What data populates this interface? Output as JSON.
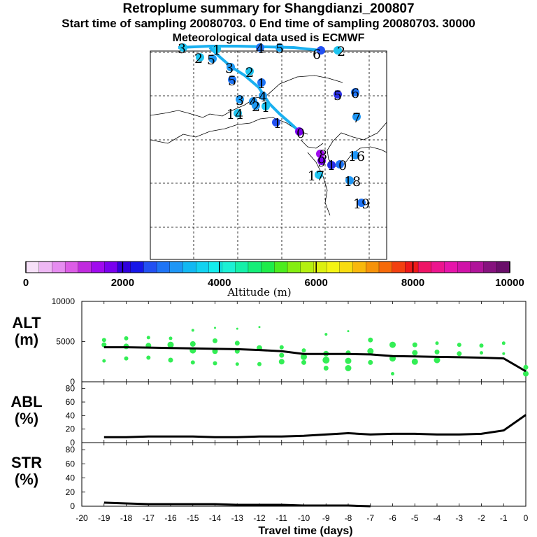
{
  "header": {
    "title": "Retroplume summary for Shangdianzi_200807",
    "sampling": "Start time of sampling 20080703.     0     End time of sampling 20080703. 30000",
    "met": "Meteorological data used is ECMWF"
  },
  "colors": {
    "trajectory": "#1ab0f0",
    "altitude_points": "#33ee55",
    "line": "#000000"
  },
  "map": {
    "labels": [
      {
        "text": "3"
      },
      {
        "text": "2"
      },
      {
        "text": "5"
      },
      {
        "text": "3"
      },
      {
        "text": "4"
      },
      {
        "text": "5"
      },
      {
        "text": "6"
      },
      {
        "text": "2"
      },
      {
        "text": "5"
      },
      {
        "text": "1"
      },
      {
        "text": "2"
      },
      {
        "text": "1"
      },
      {
        "text": "5"
      },
      {
        "text": "6"
      },
      {
        "text": "3"
      },
      {
        "text": "4"
      },
      {
        "text": "4"
      },
      {
        "text": "1"
      },
      {
        "text": "14"
      },
      {
        "text": "2"
      },
      {
        "text": "7"
      },
      {
        "text": "1"
      },
      {
        "text": "0"
      },
      {
        "text": "8"
      },
      {
        "text": "16"
      },
      {
        "text": "1"
      },
      {
        "text": "9"
      },
      {
        "text": "0"
      },
      {
        "text": "17"
      },
      {
        "text": "18"
      },
      {
        "text": "19"
      }
    ]
  },
  "colorbar": {
    "min": 0,
    "max": 10000,
    "ticks": [
      "0",
      "2000",
      "4000",
      "6000",
      "8000",
      "10000"
    ],
    "label": "Altitude (m)",
    "colors": [
      "#f6e0f8",
      "#eeb8f4",
      "#e68cf0",
      "#dc5ce6",
      "#c02ade",
      "#a00aee",
      "#7a00ee",
      "#3000dc",
      "#1616e8",
      "#2250f2",
      "#1e74f6",
      "#1e96f6",
      "#12b8f2",
      "#12d2f0",
      "#14ecec",
      "#1cf0d4",
      "#14f0a8",
      "#14ee78",
      "#1eec4a",
      "#4cec1e",
      "#84ee10",
      "#b4f010",
      "#dcf010",
      "#f4f414",
      "#f8dc10",
      "#f8b80c",
      "#f6920a",
      "#f66a0a",
      "#f24010",
      "#ee1818",
      "#ee1466",
      "#ec148e",
      "#e614aa",
      "#d012a8",
      "#b0149a",
      "#86127e",
      "#6a0e6a"
    ]
  },
  "chart_data": [
    {
      "type": "scatter+line",
      "name": "ALT",
      "ylabel": "ALT\n(m)",
      "ylabel_lines": [
        "ALT",
        "(m)"
      ],
      "ylim": [
        0,
        10000
      ],
      "yticks": [
        "10000",
        "5000",
        "0"
      ],
      "ytick_values": [
        10000,
        5000,
        0
      ],
      "xlim": [
        -20,
        0
      ],
      "line": {
        "x": [
          -19,
          -18,
          -17,
          -16,
          -15,
          -14,
          -13,
          -12,
          -11,
          -10,
          -9,
          -8,
          -7,
          -6,
          -5,
          -4,
          -3,
          -2,
          -1,
          0
        ],
        "y": [
          4300,
          4300,
          4250,
          4200,
          4150,
          4100,
          4050,
          3950,
          3800,
          3450,
          3450,
          3450,
          3400,
          3200,
          3150,
          3100,
          3050,
          3000,
          2900,
          1300
        ]
      },
      "points": {
        "x": [
          -19,
          -19,
          -19,
          -18,
          -18,
          -18,
          -17,
          -17,
          -17,
          -16,
          -16,
          -16,
          -15,
          -15,
          -15,
          -15,
          -14,
          -14,
          -14,
          -14,
          -13,
          -13,
          -13,
          -13,
          -12,
          -12,
          -12,
          -11,
          -11,
          -11,
          -10,
          -10,
          -10,
          -9,
          -9,
          -9,
          -9,
          -8,
          -8,
          -8,
          -8,
          -7,
          -7,
          -7,
          -6,
          -6,
          -6,
          -5,
          -5,
          -5,
          -4,
          -4,
          -4,
          -3,
          -3,
          -2,
          -2,
          -1,
          -1,
          0,
          0
        ],
        "y": [
          2600,
          4600,
          5200,
          2900,
          4400,
          5400,
          3000,
          4500,
          5500,
          2700,
          4600,
          5400,
          2400,
          3900,
          4700,
          6400,
          2300,
          3800,
          5100,
          6700,
          2200,
          3800,
          4800,
          6600,
          2200,
          4200,
          6800,
          2500,
          3300,
          4300,
          2400,
          3100,
          3900,
          1700,
          2700,
          3500,
          5900,
          1700,
          2600,
          3600,
          6300,
          2400,
          3800,
          5200,
          1000,
          2900,
          4600,
          2500,
          3600,
          4600,
          2700,
          3700,
          4800,
          3500,
          4600,
          3600,
          4500,
          3500,
          4800,
          1000,
          1800
        ],
        "size": [
          4,
          6,
          5,
          5,
          7,
          5,
          5,
          7,
          4,
          6,
          8,
          4,
          5,
          8,
          7,
          3,
          5,
          7,
          6,
          2,
          4,
          6,
          6,
          2,
          5,
          7,
          2,
          7,
          6,
          5,
          6,
          8,
          5,
          6,
          9,
          7,
          3,
          8,
          8,
          6,
          2,
          6,
          8,
          6,
          4,
          8,
          8,
          8,
          7,
          6,
          8,
          6,
          4,
          6,
          5,
          4,
          5,
          3,
          4,
          7,
          6
        ]
      }
    },
    {
      "type": "line",
      "name": "ABL",
      "ylabel_lines": [
        "ABL",
        "(%)"
      ],
      "ylim": [
        0,
        90
      ],
      "yticks": [
        "80",
        "60",
        "40",
        "20",
        "0"
      ],
      "ytick_values": [
        80,
        60,
        40,
        20,
        0
      ],
      "xlim": [
        -20,
        0
      ],
      "x": [
        -19,
        -18,
        -17,
        -16,
        -15,
        -14,
        -13,
        -12,
        -11,
        -10,
        -9,
        -8,
        -7,
        -6,
        -5,
        -4,
        -3,
        -2,
        -1,
        0
      ],
      "y": [
        8,
        8,
        9,
        9,
        9,
        8,
        8,
        9,
        9,
        10,
        12,
        14,
        12,
        13,
        13,
        12,
        12,
        13,
        18,
        41
      ]
    },
    {
      "type": "line",
      "name": "STR",
      "ylabel_lines": [
        "STR",
        "(%)"
      ],
      "ylim": [
        0,
        90
      ],
      "yticks": [
        "80",
        "60",
        "40",
        "20",
        "0"
      ],
      "ytick_values": [
        80,
        60,
        40,
        20,
        0
      ],
      "xlim": [
        -20,
        0
      ],
      "x": [
        -19,
        -18,
        -17,
        -16,
        -15,
        -14,
        -13,
        -12,
        -11,
        -10,
        -9,
        -8,
        -7
      ],
      "y": [
        5,
        4,
        3,
        3,
        3,
        3,
        2,
        2,
        2,
        1,
        1,
        1,
        0
      ]
    }
  ],
  "xaxis": {
    "ticks": [
      "-20",
      "-19",
      "-18",
      "-17",
      "-16",
      "-15",
      "-14",
      "-13",
      "-12",
      "-11",
      "-10",
      "-9",
      "-8",
      "-7",
      "-6",
      "-5",
      "-4",
      "-3",
      "-2",
      "-1",
      "0"
    ],
    "tick_values": [
      -20,
      -19,
      -18,
      -17,
      -16,
      -15,
      -14,
      -13,
      -12,
      -11,
      -10,
      -9,
      -8,
      -7,
      -6,
      -5,
      -4,
      -3,
      -2,
      -1,
      0
    ],
    "label": "Travel time (days)"
  }
}
